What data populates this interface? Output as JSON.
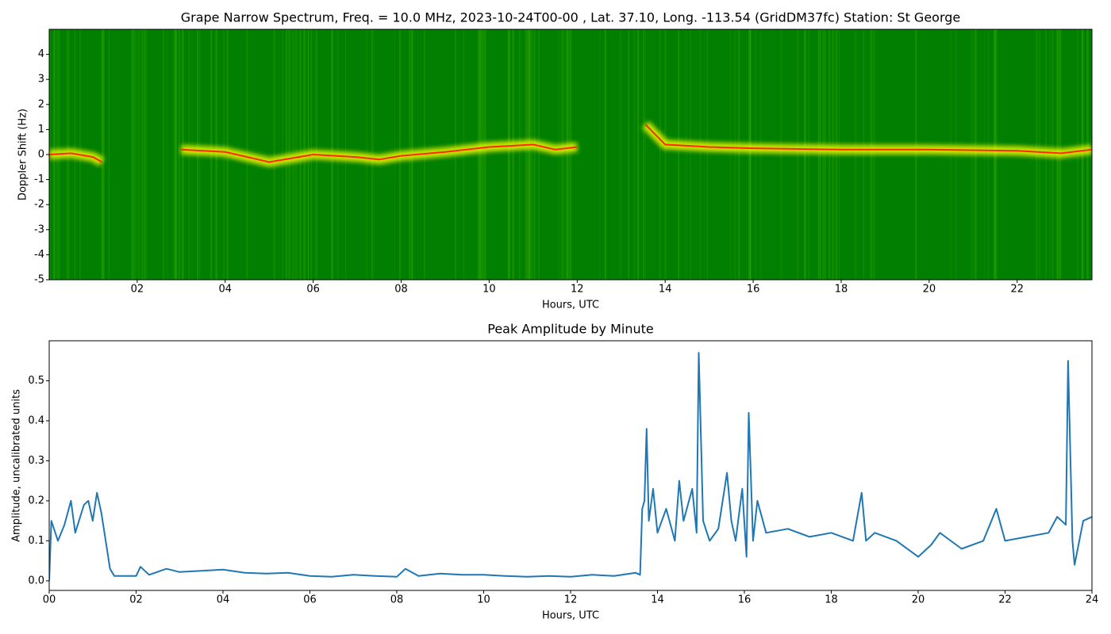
{
  "chart_data": [
    {
      "type": "spectrogram",
      "title": "Grape Narrow Spectrum, Freq. = 10.0 MHz, 2023-10-24T00-00 , Lat.  37.10, Long. -113.54 (GridDM37fc) Station: St George",
      "xlabel": "Hours, UTC",
      "ylabel": "Doppler Shift (Hz)",
      "xlim": [
        0,
        23.7
      ],
      "ylim": [
        -5,
        5
      ],
      "xticks": [
        {
          "value": 2,
          "label": "02"
        },
        {
          "value": 4,
          "label": "04"
        },
        {
          "value": 6,
          "label": "06"
        },
        {
          "value": 8,
          "label": "08"
        },
        10,
        12,
        14,
        16,
        18,
        20,
        22
      ],
      "yticks": [
        -5,
        -4,
        -3,
        -2,
        -1,
        0,
        1,
        2,
        3,
        4
      ],
      "background": "#007f00",
      "color": "#ff2a00",
      "glow": "#ffff00",
      "x": [
        0,
        0.5,
        1,
        1.2,
        1.3,
        3,
        4,
        5,
        6,
        7,
        7.5,
        8,
        9,
        10,
        11,
        11.5,
        12,
        12.5,
        13.55,
        14,
        15,
        16,
        18,
        20,
        22,
        23,
        23.7
      ],
      "values": [
        0,
        0.05,
        -0.1,
        -0.3,
        null,
        0.2,
        0.1,
        -0.3,
        0,
        -0.1,
        -0.2,
        -0.05,
        0.1,
        0.3,
        0.4,
        0.2,
        0.3,
        null,
        1.2,
        0.4,
        0.3,
        0.25,
        0.2,
        0.2,
        0.15,
        0.05,
        0.2
      ]
    },
    {
      "type": "line",
      "title": "Peak Amplitude by Minute",
      "xlabel": "Hours, UTC",
      "ylabel": "Amplitude, uncalibrated units",
      "xlim": [
        0,
        24
      ],
      "ylim": [
        -0.024,
        0.6
      ],
      "xticks": [
        {
          "value": 0,
          "label": "00"
        },
        {
          "value": 2,
          "label": "02"
        },
        {
          "value": 4,
          "label": "04"
        },
        {
          "value": 6,
          "label": "06"
        },
        {
          "value": 8,
          "label": "08"
        },
        10,
        12,
        14,
        16,
        18,
        20,
        22,
        24
      ],
      "yticks": [
        {
          "value": 0,
          "label": "0.0"
        },
        0.1,
        0.2,
        0.3,
        0.4,
        0.5
      ],
      "color": "#1f77b4",
      "x": [
        0,
        0.05,
        0.2,
        0.35,
        0.5,
        0.6,
        0.8,
        0.9,
        1.0,
        1.1,
        1.2,
        1.3,
        1.4,
        1.5,
        2.0,
        2.1,
        2.3,
        2.7,
        3.0,
        3.5,
        4.0,
        4.5,
        5.0,
        5.5,
        6.0,
        6.5,
        7.0,
        7.5,
        8.0,
        8.2,
        8.5,
        9.0,
        9.5,
        10.0,
        10.5,
        11.0,
        11.5,
        12.0,
        12.5,
        13.0,
        13.5,
        13.6,
        13.65,
        13.7,
        13.75,
        13.8,
        13.9,
        14.0,
        14.2,
        14.4,
        14.5,
        14.6,
        14.8,
        14.9,
        14.95,
        15.05,
        15.2,
        15.4,
        15.6,
        15.7,
        15.8,
        15.95,
        16.05,
        16.1,
        16.2,
        16.3,
        16.5,
        17.0,
        17.5,
        18.0,
        18.5,
        18.7,
        18.8,
        19.0,
        19.5,
        20.0,
        20.3,
        20.5,
        21.0,
        21.5,
        21.8,
        22.0,
        22.5,
        23.0,
        23.2,
        23.4,
        23.45,
        23.55,
        23.6,
        23.8,
        24.0
      ],
      "values": [
        0.0,
        0.15,
        0.1,
        0.14,
        0.2,
        0.12,
        0.19,
        0.2,
        0.15,
        0.22,
        0.17,
        0.1,
        0.03,
        0.012,
        0.012,
        0.035,
        0.015,
        0.03,
        0.022,
        0.025,
        0.028,
        0.02,
        0.018,
        0.02,
        0.012,
        0.01,
        0.015,
        0.012,
        0.01,
        0.03,
        0.012,
        0.018,
        0.015,
        0.015,
        0.012,
        0.01,
        0.012,
        0.01,
        0.015,
        0.012,
        0.02,
        0.015,
        0.18,
        0.2,
        0.38,
        0.15,
        0.23,
        0.12,
        0.18,
        0.1,
        0.25,
        0.15,
        0.23,
        0.12,
        0.57,
        0.15,
        0.1,
        0.13,
        0.27,
        0.15,
        0.1,
        0.23,
        0.06,
        0.42,
        0.1,
        0.2,
        0.12,
        0.13,
        0.11,
        0.12,
        0.1,
        0.22,
        0.1,
        0.12,
        0.1,
        0.06,
        0.09,
        0.12,
        0.08,
        0.1,
        0.18,
        0.1,
        0.11,
        0.12,
        0.16,
        0.14,
        0.55,
        0.1,
        0.04,
        0.15,
        0.16
      ]
    }
  ]
}
